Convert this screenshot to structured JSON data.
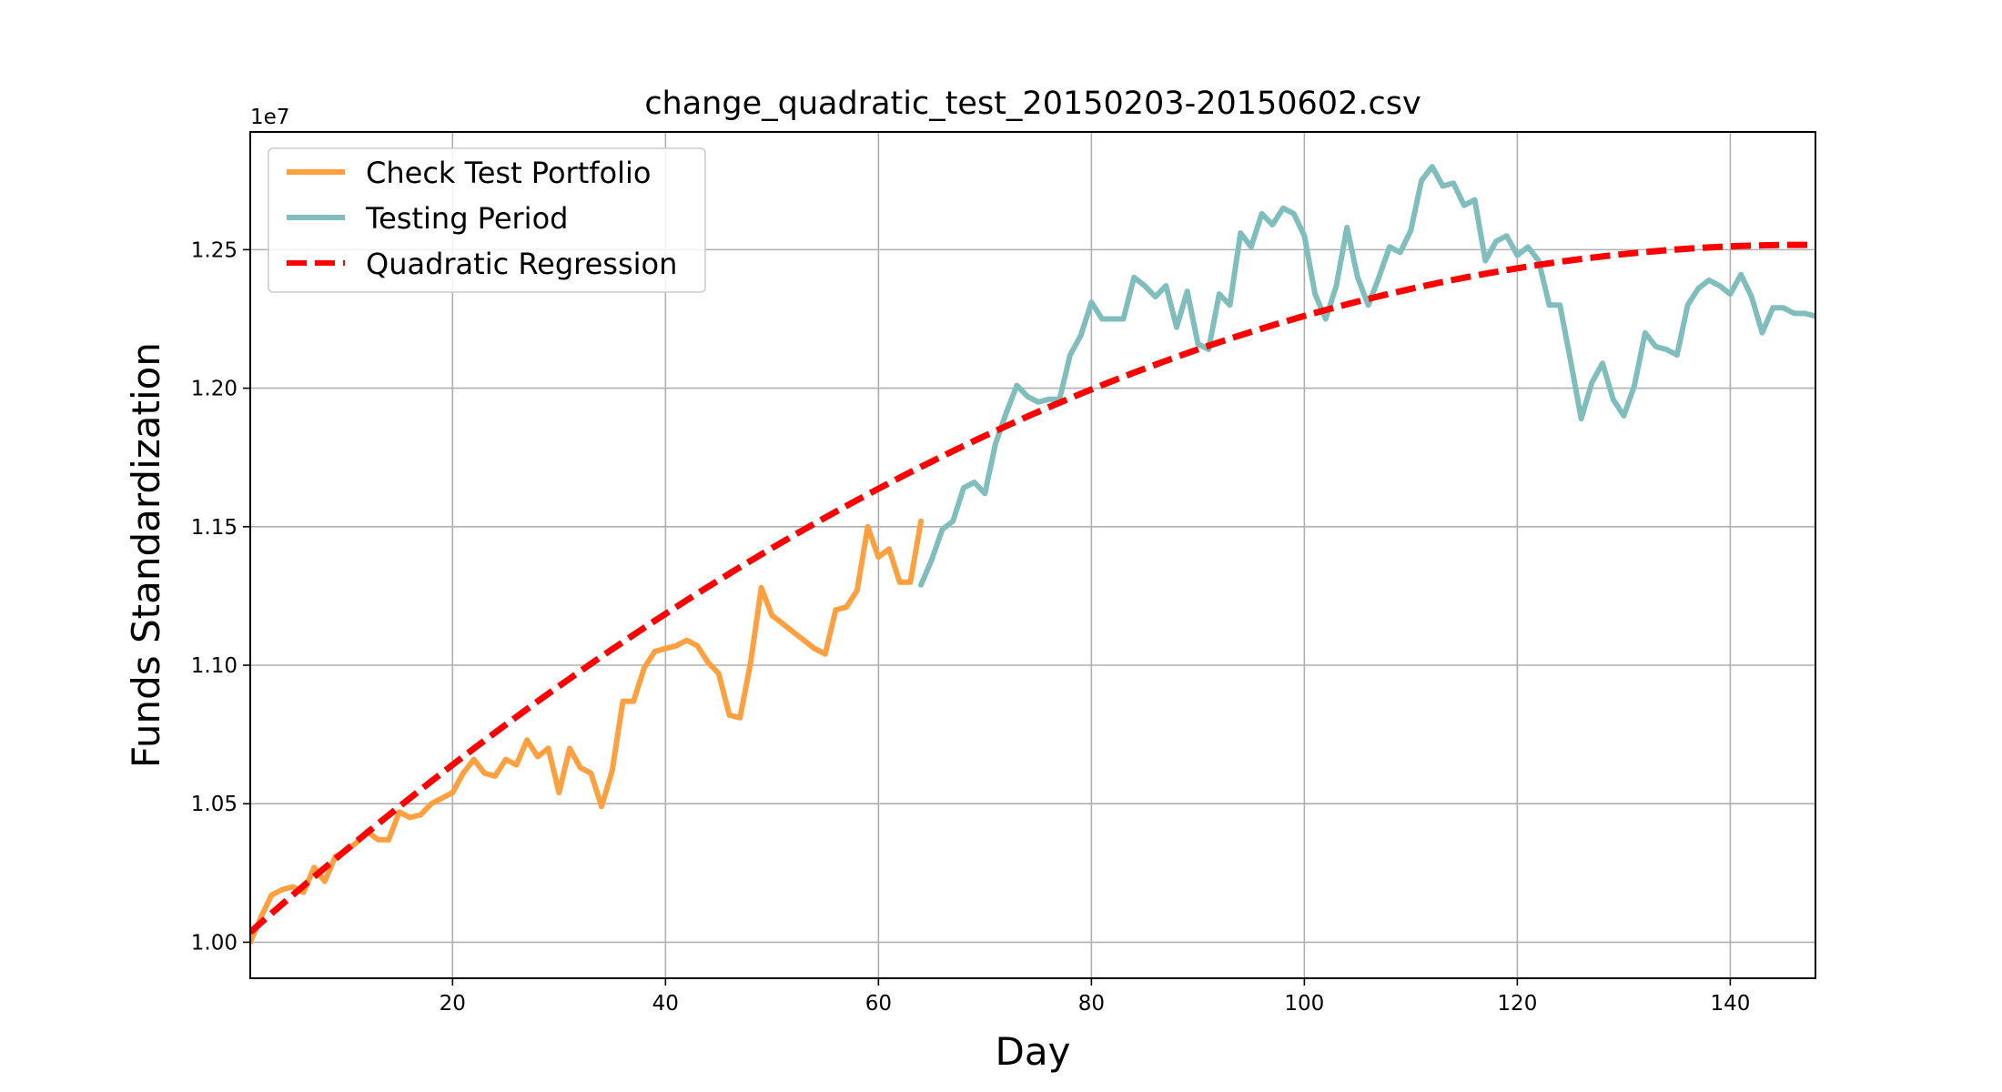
{
  "chart_data": {
    "type": "line",
    "title": "change_quadratic_test_20150203-20150602.csv",
    "xlabel": "Day",
    "ylabel": "Funds Standardization",
    "y_offset_label": "1e7",
    "xlim": [
      1,
      148
    ],
    "ylim": [
      0.987,
      1.2925
    ],
    "y_scale_factor": 10000000,
    "x_ticks": [
      20,
      40,
      60,
      80,
      100,
      120,
      140
    ],
    "y_ticks": [
      1.0,
      1.05,
      1.1,
      1.15,
      1.2,
      1.25
    ],
    "x_tick_labels": [
      "20",
      "40",
      "60",
      "80",
      "100",
      "120",
      "140"
    ],
    "y_tick_labels": [
      "1.00",
      "1.05",
      "1.10",
      "1.15",
      "1.20",
      "1.25"
    ],
    "grid": true,
    "legend_position": "upper-left",
    "series": [
      {
        "name": "Check Test Portfolio",
        "color": "#ffa040",
        "style": "solid",
        "x": [
          1,
          2,
          3,
          4,
          5,
          6,
          7,
          8,
          9,
          10,
          11,
          12,
          13,
          14,
          15,
          16,
          17,
          18,
          19,
          20,
          21,
          22,
          23,
          24,
          25,
          26,
          27,
          28,
          29,
          30,
          31,
          32,
          33,
          34,
          35,
          36,
          37,
          38,
          39,
          40,
          41,
          42,
          43,
          44,
          45,
          46,
          47,
          48,
          49,
          50,
          51,
          52,
          53,
          54,
          55,
          56,
          57,
          58,
          59,
          60,
          61,
          62,
          63,
          64
        ],
        "values": [
          1.0,
          1.009,
          1.017,
          1.019,
          1.02,
          1.018,
          1.027,
          1.022,
          1.031,
          1.033,
          1.036,
          1.04,
          1.037,
          1.037,
          1.047,
          1.045,
          1.046,
          1.05,
          1.052,
          1.054,
          1.061,
          1.066,
          1.061,
          1.06,
          1.066,
          1.064,
          1.073,
          1.067,
          1.07,
          1.054,
          1.07,
          1.063,
          1.061,
          1.049,
          1.062,
          1.087,
          1.087,
          1.099,
          1.105,
          1.106,
          1.107,
          1.109,
          1.107,
          1.101,
          1.097,
          1.082,
          1.081,
          1.101,
          1.128,
          1.118,
          1.115,
          1.112,
          1.109,
          1.106,
          1.104,
          1.12,
          1.121,
          1.127,
          1.15,
          1.139,
          1.142,
          1.13,
          1.13,
          1.152
        ]
      },
      {
        "name": "Testing Period",
        "color": "#80bdbd",
        "style": "solid",
        "x": [
          64,
          65,
          66,
          67,
          68,
          69,
          70,
          71,
          72,
          73,
          74,
          75,
          76,
          77,
          78,
          79,
          80,
          81,
          82,
          83,
          84,
          85,
          86,
          87,
          88,
          89,
          90,
          91,
          92,
          93,
          94,
          95,
          96,
          97,
          98,
          99,
          100,
          101,
          102,
          103,
          104,
          105,
          106,
          107,
          108,
          109,
          110,
          111,
          112,
          113,
          114,
          115,
          116,
          117,
          118,
          119,
          120,
          121,
          122,
          123,
          124,
          125,
          126,
          127,
          128,
          129,
          130,
          131,
          132,
          133,
          134,
          135,
          136,
          137,
          138,
          139,
          140,
          141,
          142,
          143,
          144,
          145,
          146,
          147,
          148
        ],
        "values": [
          1.129,
          1.138,
          1.149,
          1.152,
          1.164,
          1.166,
          1.162,
          1.18,
          1.191,
          1.201,
          1.197,
          1.195,
          1.196,
          1.196,
          1.212,
          1.219,
          1.231,
          1.225,
          1.225,
          1.225,
          1.24,
          1.237,
          1.233,
          1.237,
          1.222,
          1.235,
          1.216,
          1.214,
          1.234,
          1.23,
          1.256,
          1.251,
          1.263,
          1.259,
          1.265,
          1.263,
          1.255,
          1.234,
          1.225,
          1.237,
          1.258,
          1.24,
          1.23,
          1.24,
          1.251,
          1.249,
          1.257,
          1.275,
          1.28,
          1.273,
          1.274,
          1.266,
          1.268,
          1.246,
          1.253,
          1.255,
          1.248,
          1.251,
          1.246,
          1.23,
          1.23,
          1.21,
          1.189,
          1.202,
          1.209,
          1.196,
          1.19,
          1.201,
          1.22,
          1.215,
          1.214,
          1.212,
          1.23,
          1.236,
          1.239,
          1.237,
          1.234,
          1.241,
          1.233,
          1.22,
          1.229,
          1.229,
          1.227,
          1.227,
          1.226
        ]
      },
      {
        "name": "Quadratic Regression",
        "color": "#ff0000",
        "style": "dashed",
        "formula": {
          "a": 1.00022,
          "b": 0.0034236,
          "c": -1.165e-05
        }
      }
    ]
  }
}
